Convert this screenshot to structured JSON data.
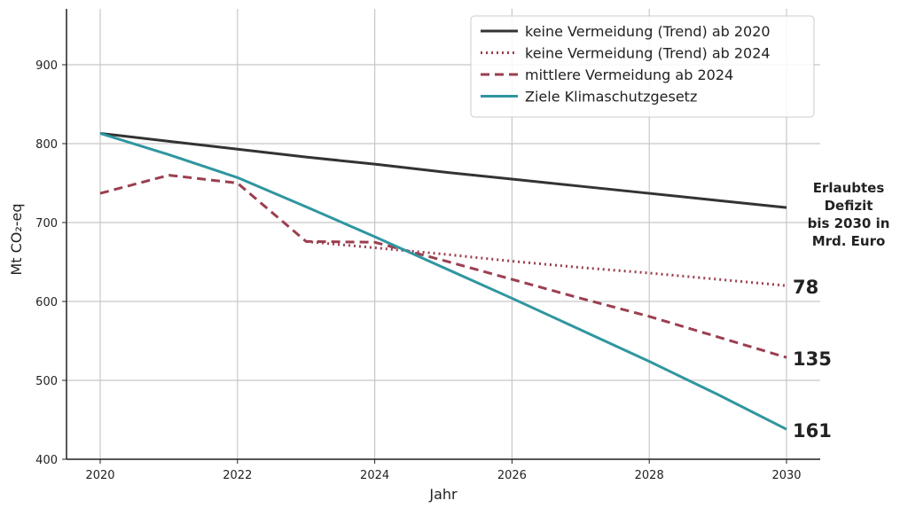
{
  "chart_data": {
    "type": "line",
    "title": "",
    "xlabel": "Jahr",
    "ylabel": "Mt CO₂-eq",
    "xlim": [
      2019.5,
      2030.5
    ],
    "ylim": [
      400,
      970
    ],
    "xticks": [
      2020,
      2022,
      2024,
      2026,
      2028,
      2030
    ],
    "yticks": [
      400,
      500,
      600,
      700,
      800,
      900
    ],
    "grid": true,
    "legend_position": "top-right",
    "series": [
      {
        "name": "keine Vermeidung (Trend) ab 2020",
        "style": "solid",
        "color": "#333333",
        "x": [
          2020,
          2021,
          2022,
          2023,
          2024,
          2025,
          2026,
          2027,
          2028,
          2029,
          2030
        ],
        "y": [
          813,
          803,
          793,
          783,
          774,
          764,
          755,
          746,
          737,
          728,
          719
        ]
      },
      {
        "name": "keine Vermeidung (Trend) ab 2024",
        "style": "dotted",
        "color": "#9b3f50",
        "x": [
          2023,
          2024,
          2025,
          2026,
          2027,
          2028,
          2029,
          2030
        ],
        "y": [
          676,
          668,
          660,
          651,
          643,
          636,
          628,
          620
        ]
      },
      {
        "name": "mittlere Vermeidung ab 2024",
        "style": "dashed",
        "color": "#9b3f50",
        "x": [
          2020,
          2021,
          2022,
          2023,
          2024,
          2025,
          2026,
          2027,
          2028,
          2029,
          2030
        ],
        "y": [
          737,
          760,
          750,
          676,
          675,
          652,
          628,
          604,
          581,
          555,
          529
        ]
      },
      {
        "name": "Ziele Klimaschutzgesetz",
        "style": "solid",
        "color": "#2f96a0",
        "x": [
          2020,
          2021,
          2022,
          2023,
          2024,
          2025,
          2026,
          2027,
          2028,
          2029,
          2030
        ],
        "y": [
          813,
          786,
          757,
          720,
          682,
          643,
          604,
          564,
          524,
          482,
          438
        ]
      }
    ],
    "annotations": {
      "header": [
        "Erlaubtes",
        "Defizit",
        "bis 2030 in",
        "Mrd. Euro"
      ],
      "values": [
        {
          "text": "78",
          "y": 620
        },
        {
          "text": "135",
          "y": 529
        },
        {
          "text": "161",
          "y": 438
        }
      ]
    }
  }
}
